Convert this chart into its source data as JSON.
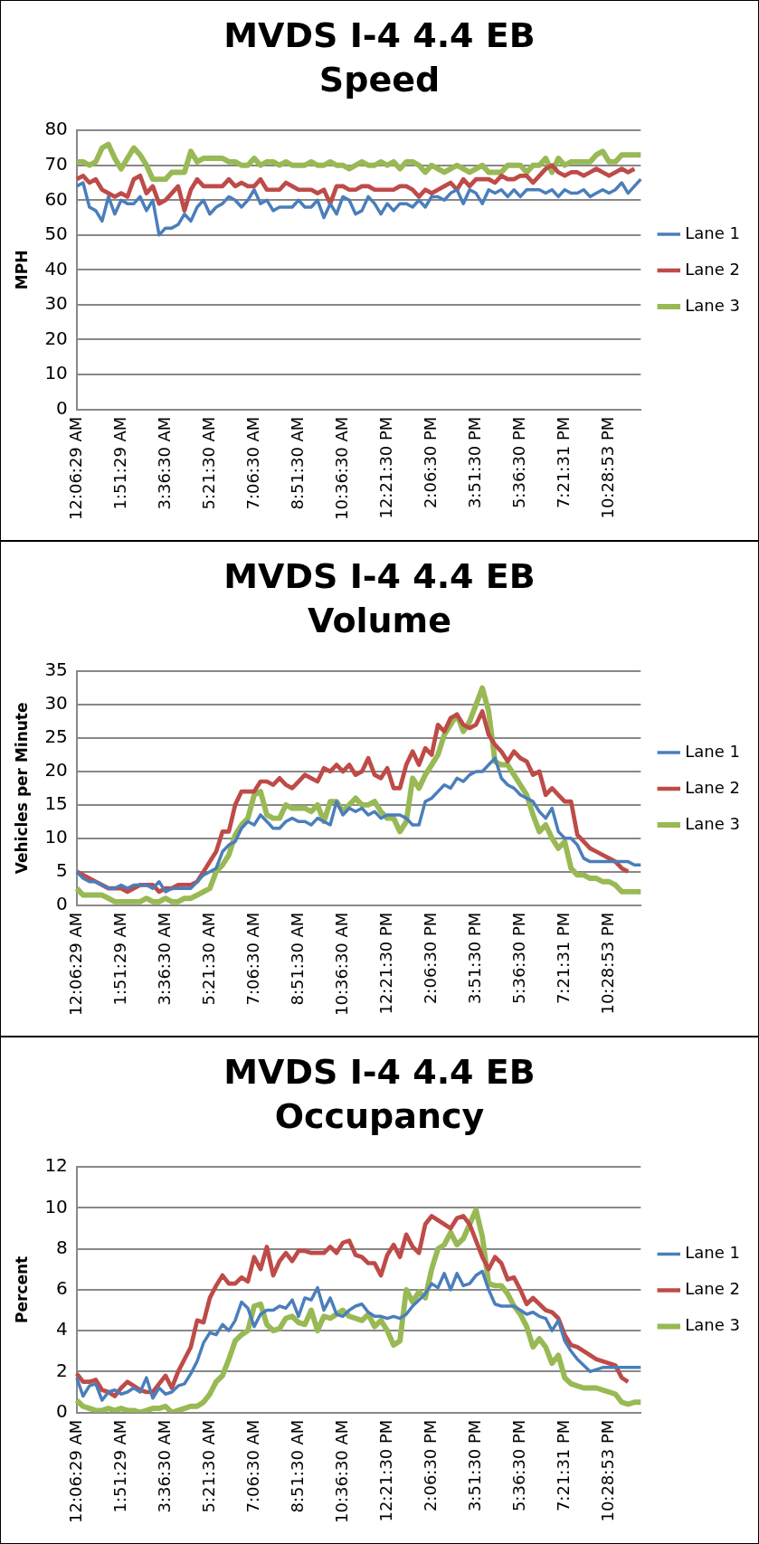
{
  "chart_data": [
    {
      "type": "line",
      "title": "MVDS I-4 4.4 EB",
      "subtitle": "Speed",
      "ylabel": "MPH",
      "ylim": [
        0,
        80
      ],
      "yticks": [
        0,
        10,
        20,
        30,
        40,
        50,
        60,
        70,
        80
      ],
      "grid": "y",
      "legend": "right",
      "marker": "none",
      "categories": [
        "12:06:29 AM",
        null,
        null,
        null,
        null,
        null,
        null,
        "1:51:29 AM",
        null,
        null,
        null,
        null,
        null,
        null,
        "3:36:30 AM",
        null,
        null,
        null,
        null,
        null,
        null,
        "5:21:30 AM",
        null,
        null,
        null,
        null,
        null,
        null,
        "7:06:30 AM",
        null,
        null,
        null,
        null,
        null,
        null,
        "8:51:30 AM",
        null,
        null,
        null,
        null,
        null,
        null,
        "10:36:30 AM",
        null,
        null,
        null,
        null,
        null,
        null,
        "12:21:30 PM",
        null,
        null,
        null,
        null,
        null,
        null,
        "2:06:30 PM",
        null,
        null,
        null,
        null,
        null,
        null,
        "3:51:30 PM",
        null,
        null,
        null,
        null,
        null,
        null,
        "5:36:30 PM",
        null,
        null,
        null,
        null,
        null,
        null,
        "7:21:31 PM",
        null,
        null,
        null,
        null,
        null,
        null,
        "10:28:53 PM",
        null,
        null,
        null,
        null,
        null
      ],
      "series": [
        {
          "name": "Lane 1",
          "color": "#4a7ebb",
          "values": [
            64,
            65,
            58,
            57,
            54,
            61,
            56,
            60,
            59,
            59,
            61,
            57,
            60,
            50,
            52,
            52,
            53,
            56,
            54,
            58,
            60,
            56,
            58,
            59,
            61,
            60,
            58,
            60,
            63,
            59,
            60,
            57,
            58,
            58,
            58,
            60,
            58,
            58,
            60,
            55,
            59,
            56,
            61,
            60,
            56,
            57,
            61,
            59,
            56,
            59,
            57,
            59,
            59,
            58,
            60,
            58,
            61,
            61,
            60,
            62,
            63,
            59,
            63,
            62,
            59,
            63,
            62,
            63,
            61,
            63,
            61,
            63,
            63,
            63,
            62,
            63,
            61,
            63,
            62,
            62,
            63,
            61,
            62,
            63,
            62,
            63,
            65,
            62,
            64,
            66
          ]
        },
        {
          "name": "Lane 2",
          "color": "#be4b48",
          "values": [
            66,
            67,
            65,
            66,
            63,
            62,
            61,
            62,
            61,
            66,
            67,
            62,
            64,
            59,
            60,
            62,
            64,
            57,
            63,
            66,
            64,
            64,
            64,
            64,
            66,
            64,
            65,
            64,
            64,
            66,
            63,
            63,
            63,
            65,
            64,
            63,
            63,
            63,
            62,
            63,
            59,
            64,
            64,
            63,
            63,
            64,
            64,
            63,
            63,
            63,
            63,
            64,
            64,
            63,
            61,
            63,
            62,
            63,
            64,
            65,
            63,
            66,
            64,
            66,
            66,
            66,
            65,
            67,
            66,
            66,
            67,
            67,
            65,
            67,
            69,
            70,
            68,
            67,
            68,
            68,
            67,
            68,
            69,
            68,
            67,
            68,
            69,
            68,
            69,
            null
          ]
        },
        {
          "name": "Lane 3",
          "color": "#98b954",
          "values": [
            71,
            71,
            70,
            71,
            75,
            76,
            72,
            69,
            72,
            75,
            73,
            70,
            66,
            66,
            66,
            68,
            68,
            68,
            74,
            71,
            72,
            72,
            72,
            72,
            71,
            71,
            70,
            70,
            72,
            70,
            71,
            71,
            70,
            71,
            70,
            70,
            70,
            71,
            70,
            70,
            71,
            70,
            70,
            69,
            70,
            71,
            70,
            70,
            71,
            70,
            71,
            69,
            71,
            71,
            70,
            68,
            70,
            69,
            68,
            69,
            70,
            69,
            68,
            69,
            70,
            68,
            68,
            68,
            70,
            70,
            70,
            68,
            70,
            70,
            72,
            68,
            72,
            70,
            71,
            71,
            71,
            71,
            73,
            74,
            71,
            71,
            73,
            73,
            73,
            73
          ]
        }
      ]
    },
    {
      "type": "line",
      "title": "MVDS I-4 4.4 EB",
      "subtitle": "Volume",
      "ylabel": "Vehicles per Minute",
      "ylim": [
        0,
        35
      ],
      "yticks": [
        0,
        5,
        10,
        15,
        20,
        25,
        30,
        35
      ],
      "grid": "y",
      "legend": "right",
      "marker": "none",
      "categories": [
        "12:06:29 AM",
        null,
        null,
        null,
        null,
        null,
        null,
        "1:51:29 AM",
        null,
        null,
        null,
        null,
        null,
        null,
        "3:36:30 AM",
        null,
        null,
        null,
        null,
        null,
        null,
        "5:21:30 AM",
        null,
        null,
        null,
        null,
        null,
        null,
        "7:06:30 AM",
        null,
        null,
        null,
        null,
        null,
        null,
        "8:51:30 AM",
        null,
        null,
        null,
        null,
        null,
        null,
        "10:36:30 AM",
        null,
        null,
        null,
        null,
        null,
        null,
        "12:21:30 PM",
        null,
        null,
        null,
        null,
        null,
        null,
        "2:06:30 PM",
        null,
        null,
        null,
        null,
        null,
        null,
        "3:51:30 PM",
        null,
        null,
        null,
        null,
        null,
        null,
        "5:36:30 PM",
        null,
        null,
        null,
        null,
        null,
        null,
        "7:21:31 PM",
        null,
        null,
        null,
        null,
        null,
        null,
        "10:28:53 PM",
        null,
        null,
        null,
        null,
        null
      ],
      "series": [
        {
          "name": "Lane 1",
          "color": "#4a7ebb",
          "values": [
            5,
            4,
            3.5,
            3.5,
            3,
            2.5,
            2.5,
            3,
            2.5,
            3,
            3,
            3,
            2.5,
            3.5,
            2,
            2.5,
            2.5,
            2.5,
            2.5,
            3.5,
            4.5,
            5,
            5.5,
            8,
            9,
            9.5,
            11.5,
            12.5,
            12,
            13.5,
            12.5,
            11.5,
            11.5,
            12.5,
            13,
            12.5,
            12.5,
            12,
            13,
            12.5,
            12,
            15.5,
            13.5,
            14.5,
            14,
            14.5,
            13.5,
            14,
            13,
            13.5,
            13.5,
            13.5,
            13,
            12,
            12,
            15.5,
            16,
            17,
            18,
            17.5,
            19,
            18.5,
            19.5,
            20,
            20,
            21,
            22,
            19,
            18,
            17.5,
            16.5,
            16,
            15.5,
            14,
            13,
            14.5,
            11,
            10,
            10,
            9,
            7,
            6.5,
            6.5,
            6.5,
            6.5,
            6.5,
            6.5,
            6.5,
            6,
            6
          ]
        },
        {
          "name": "Lane 2",
          "color": "#be4b48",
          "values": [
            5,
            4.5,
            4,
            3.5,
            3,
            2.5,
            2.5,
            2.5,
            2,
            2.5,
            3,
            3,
            3,
            2,
            2.5,
            2.5,
            3,
            3,
            3,
            3.5,
            5,
            6.5,
            8,
            11,
            11,
            15,
            17,
            17,
            17,
            18.5,
            18.5,
            18,
            19,
            18,
            17.5,
            18.5,
            19.5,
            19,
            18.5,
            20.5,
            20,
            21,
            20,
            21,
            19.5,
            20,
            22,
            19.5,
            19,
            20.5,
            17.5,
            17.5,
            21,
            23,
            21,
            23.5,
            22.5,
            27,
            26,
            28,
            28.5,
            27,
            26.5,
            27,
            29,
            25.5,
            24,
            23,
            21.5,
            23,
            22,
            21.5,
            19.5,
            20,
            16.5,
            17.5,
            16.5,
            15.5,
            15.5,
            10.5,
            9.5,
            8.5,
            8,
            7.5,
            7,
            6.5,
            5.5,
            5,
            null,
            null
          ]
        },
        {
          "name": "Lane 3",
          "color": "#98b954",
          "values": [
            2.5,
            1.5,
            1.5,
            1.5,
            1.5,
            1,
            0.5,
            0.5,
            0.5,
            0.5,
            0.5,
            1,
            0.5,
            0.5,
            1,
            0.5,
            0.5,
            1,
            1,
            1.5,
            2,
            2.5,
            5,
            6,
            7.5,
            10.5,
            12,
            13,
            16.5,
            17,
            13.5,
            13,
            13,
            15,
            14.5,
            14.5,
            14.5,
            14,
            15,
            12.5,
            15.5,
            15.5,
            14,
            15,
            16,
            15,
            15,
            15.5,
            14,
            13,
            13,
            11,
            12.5,
            19,
            17.5,
            19.5,
            21,
            22.5,
            25.5,
            27,
            28.5,
            26,
            27.5,
            30,
            32.5,
            29,
            21.5,
            21,
            21,
            19.5,
            18,
            16.5,
            13.5,
            11,
            12,
            10,
            8.5,
            9.5,
            5.5,
            4.5,
            4.5,
            4,
            4,
            3.5,
            3.5,
            3,
            2,
            2,
            2,
            2
          ]
        }
      ]
    },
    {
      "type": "line",
      "title": "MVDS I-4 4.4 EB",
      "subtitle": "Occupancy",
      "ylabel": "Percent",
      "ylim": [
        0,
        12
      ],
      "yticks": [
        0,
        2,
        4,
        6,
        8,
        10,
        12
      ],
      "grid": "y",
      "legend": "right",
      "marker": "none",
      "categories": [
        "12:06:29 AM",
        null,
        null,
        null,
        null,
        null,
        null,
        "1:51:29 AM",
        null,
        null,
        null,
        null,
        null,
        null,
        "3:36:30 AM",
        null,
        null,
        null,
        null,
        null,
        null,
        "5:21:30 AM",
        null,
        null,
        null,
        null,
        null,
        null,
        "7:06:30 AM",
        null,
        null,
        null,
        null,
        null,
        null,
        "8:51:30 AM",
        null,
        null,
        null,
        null,
        null,
        null,
        "10:36:30 AM",
        null,
        null,
        null,
        null,
        null,
        null,
        "12:21:30 PM",
        null,
        null,
        null,
        null,
        null,
        null,
        "2:06:30 PM",
        null,
        null,
        null,
        null,
        null,
        null,
        "3:51:30 PM",
        null,
        null,
        null,
        null,
        null,
        null,
        "5:36:30 PM",
        null,
        null,
        null,
        null,
        null,
        null,
        "7:21:31 PM",
        null,
        null,
        null,
        null,
        null,
        null,
        "10:28:53 PM",
        null,
        null,
        null,
        null,
        null
      ],
      "series": [
        {
          "name": "Lane 1",
          "color": "#4a7ebb",
          "values": [
            1.7,
            0.8,
            1.3,
            1.4,
            0.6,
            1,
            1.1,
            0.9,
            1,
            1.2,
            1,
            1.7,
            0.7,
            1.2,
            0.9,
            1,
            1.3,
            1.4,
            1.9,
            2.5,
            3.4,
            3.9,
            3.8,
            4.3,
            4,
            4.5,
            5.4,
            5.1,
            4.2,
            4.8,
            5,
            5,
            5.2,
            5.1,
            5.5,
            4.7,
            5.6,
            5.5,
            6.1,
            5,
            5.6,
            4.8,
            4.7,
            5,
            5.2,
            5.3,
            4.9,
            4.7,
            4.7,
            4.6,
            4.7,
            4.6,
            4.8,
            5.2,
            5.5,
            5.8,
            6.3,
            6.1,
            6.8,
            6,
            6.8,
            6.2,
            6.3,
            6.7,
            6.9,
            6,
            5.3,
            5.2,
            5.2,
            5.2,
            5,
            4.8,
            4.9,
            4.7,
            4.6,
            4,
            4.5,
            3.5,
            3,
            2.6,
            2.3,
            2,
            2.1,
            2.2,
            2.2,
            2.2,
            2.2,
            2.2,
            2.2,
            2.2
          ]
        },
        {
          "name": "Lane 2",
          "color": "#be4b48",
          "values": [
            1.9,
            1.5,
            1.5,
            1.6,
            1.1,
            1,
            0.8,
            1.2,
            1.5,
            1.3,
            1.1,
            1,
            1,
            1.4,
            1.8,
            1.2,
            2,
            2.6,
            3.2,
            4.5,
            4.4,
            5.6,
            6.2,
            6.7,
            6.3,
            6.3,
            6.6,
            6.4,
            7.6,
            7,
            8.1,
            6.7,
            7.4,
            7.8,
            7.4,
            7.9,
            7.9,
            7.8,
            7.8,
            7.8,
            8.1,
            7.8,
            8.3,
            8.4,
            7.7,
            7.6,
            7.3,
            7.3,
            6.7,
            7.7,
            8.2,
            7.6,
            8.7,
            8.1,
            7.8,
            9.2,
            9.6,
            9.4,
            9.2,
            9,
            9.5,
            9.6,
            9.2,
            8.4,
            7.6,
            7,
            7.6,
            7.3,
            6.5,
            6.6,
            6,
            5.3,
            5.6,
            5.3,
            5,
            4.9,
            4.6,
            3.8,
            3.3,
            3.2,
            3,
            2.8,
            2.6,
            2.5,
            2.4,
            2.3,
            1.7,
            1.5,
            null,
            null
          ]
        },
        {
          "name": "Lane 3",
          "color": "#98b954",
          "values": [
            0.6,
            0.3,
            0.2,
            0.1,
            0.1,
            0.2,
            0.1,
            0.2,
            0.1,
            0.1,
            0,
            0.1,
            0.2,
            0.2,
            0.3,
            0,
            0.1,
            0.2,
            0.3,
            0.3,
            0.5,
            0.9,
            1.5,
            1.8,
            2.6,
            3.5,
            3.8,
            4,
            5.2,
            5.3,
            4.3,
            4,
            4.1,
            4.6,
            4.7,
            4.4,
            4.3,
            5,
            4,
            4.7,
            4.6,
            4.8,
            5,
            4.7,
            4.6,
            4.5,
            4.8,
            4.2,
            4.5,
            4,
            3.3,
            3.5,
            6,
            5.4,
            5.9,
            5.6,
            7,
            8,
            8.2,
            8.8,
            8.2,
            8.5,
            9.2,
            9.9,
            8.6,
            6.3,
            6.2,
            6.2,
            5.8,
            5.2,
            4.8,
            4.2,
            3.2,
            3.6,
            3.2,
            2.4,
            2.8,
            1.7,
            1.4,
            1.3,
            1.2,
            1.2,
            1.2,
            1.1,
            1,
            0.9,
            0.5,
            0.4,
            0.5,
            0.5
          ]
        }
      ]
    }
  ]
}
